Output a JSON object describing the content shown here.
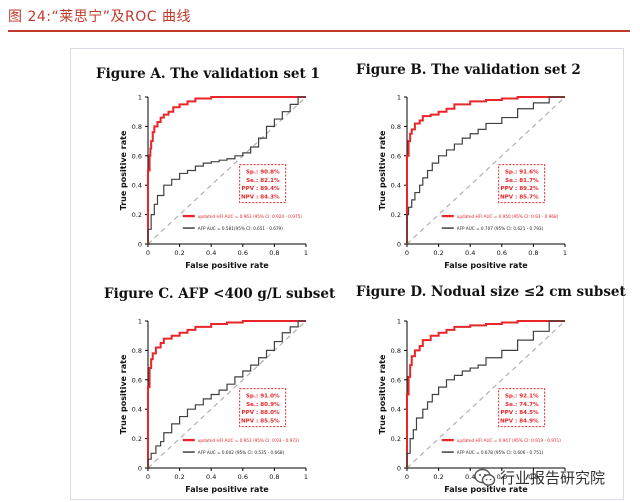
{
  "header": {
    "title": "图 24:“莱思宁”及ROC 曲线"
  },
  "colors": {
    "accent": "#c0392b",
    "updated": "#e8262a",
    "afp": "#404040",
    "diagonal": "#b0b0b0"
  },
  "watermark": {
    "text": "行业报告研究院",
    "icon": "wechat-icon"
  },
  "chart_data": [
    {
      "type": "line",
      "title": "Figure A.  The validation set 1",
      "xlabel": "False positive rate",
      "ylabel": "True positive rate",
      "xlim": [
        0,
        1
      ],
      "ylim": [
        0,
        1
      ],
      "xticks": [
        "0",
        "0.2",
        "0.4",
        "0.6",
        "0.8",
        "1"
      ],
      "yticks": [
        "0",
        "0.2",
        "0.4",
        "0.6",
        "0.8",
        "1"
      ],
      "stats": [
        "Sp.: 90.8%",
        "Se.: 82.1%",
        "PPV : 89.4%",
        "NPV : 84.3%"
      ],
      "series": [
        {
          "name": "updated HFI AUC = 0.961 (95% CI: 0.924 - 0.975)",
          "x": [
            0,
            0.01,
            0.015,
            0.02,
            0.03,
            0.04,
            0.06,
            0.08,
            0.1,
            0.13,
            0.16,
            0.2,
            0.25,
            0.3,
            0.4,
            0.6,
            0.8,
            1.0
          ],
          "y": [
            0,
            0.5,
            0.6,
            0.65,
            0.7,
            0.76,
            0.8,
            0.83,
            0.86,
            0.88,
            0.9,
            0.93,
            0.95,
            0.97,
            0.99,
            1.0,
            1.0,
            1.0
          ]
        },
        {
          "name": "AFP AUC = 0.581(95% CI: 0.651 - 0.679)",
          "x": [
            0,
            0.02,
            0.04,
            0.06,
            0.1,
            0.15,
            0.2,
            0.25,
            0.3,
            0.35,
            0.4,
            0.45,
            0.5,
            0.55,
            0.6,
            0.65,
            0.7,
            0.75,
            0.8,
            0.85,
            0.9,
            0.95,
            1.0
          ],
          "y": [
            0,
            0.1,
            0.2,
            0.27,
            0.33,
            0.4,
            0.44,
            0.48,
            0.5,
            0.53,
            0.55,
            0.56,
            0.57,
            0.58,
            0.6,
            0.62,
            0.66,
            0.72,
            0.8,
            0.85,
            0.9,
            0.95,
            1.0
          ]
        }
      ]
    },
    {
      "type": "line",
      "title": "Figure B. The validation set 2",
      "xlabel": "False positive rate",
      "ylabel": "True positive rate",
      "xlim": [
        0,
        1
      ],
      "ylim": [
        0,
        1
      ],
      "xticks": [
        "0",
        "0.2",
        "0.4",
        "0.6",
        "0.8",
        "1"
      ],
      "yticks": [
        "0",
        "0.2",
        "0.4",
        "0.6",
        "0.8",
        "1"
      ],
      "stats": [
        "Sp.: 91.6%",
        "Se.: 81.7%",
        "PPV : 89.2%",
        "NPV : 85.7%"
      ],
      "series": [
        {
          "name": "updated HFI AUC = 0.950 (95% CI: 0.93 - 0.968)",
          "x": [
            0,
            0.01,
            0.02,
            0.03,
            0.05,
            0.08,
            0.1,
            0.15,
            0.2,
            0.25,
            0.3,
            0.4,
            0.5,
            0.6,
            0.7,
            0.8,
            1.0
          ],
          "y": [
            0,
            0.6,
            0.7,
            0.75,
            0.78,
            0.82,
            0.84,
            0.87,
            0.88,
            0.9,
            0.92,
            0.95,
            0.97,
            0.98,
            0.99,
            1.0,
            1.0
          ]
        },
        {
          "name": "AFP AUC = 0.707 (95% CI: 0.621 - 0.793)",
          "x": [
            0,
            0.01,
            0.03,
            0.05,
            0.08,
            0.1,
            0.13,
            0.16,
            0.2,
            0.25,
            0.3,
            0.35,
            0.4,
            0.45,
            0.5,
            0.6,
            0.7,
            0.8,
            0.9,
            1.0
          ],
          "y": [
            0,
            0.2,
            0.25,
            0.3,
            0.35,
            0.4,
            0.45,
            0.5,
            0.55,
            0.6,
            0.64,
            0.68,
            0.72,
            0.75,
            0.78,
            0.82,
            0.86,
            0.92,
            0.96,
            1.0
          ]
        }
      ]
    },
    {
      "type": "line",
      "title": "Figure C. AFP <400 g/L subset",
      "xlabel": "False positive rate",
      "ylabel": "True positive rate",
      "xlim": [
        0,
        1
      ],
      "ylim": [
        0,
        1
      ],
      "xticks": [
        "0",
        "0.2",
        "0.4",
        "0.6",
        "0.8",
        "1"
      ],
      "yticks": [
        "0",
        "0.2",
        "0.4",
        "0.6",
        "0.8",
        "1"
      ],
      "stats": [
        "Sp.: 91.0%",
        "Se.: 80.9%",
        "PPV : 88.0%",
        "NPV : 85.5%"
      ],
      "series": [
        {
          "name": "updated HFI AUC = 0.951 (95% CI: 0.93 - 0.972)",
          "x": [
            0,
            0.01,
            0.02,
            0.03,
            0.05,
            0.08,
            0.1,
            0.15,
            0.2,
            0.25,
            0.3,
            0.4,
            0.5,
            0.6,
            0.7,
            0.8,
            1.0
          ],
          "y": [
            0,
            0.55,
            0.68,
            0.74,
            0.78,
            0.82,
            0.85,
            0.88,
            0.9,
            0.92,
            0.94,
            0.96,
            0.98,
            0.99,
            1.0,
            1.0,
            1.0
          ]
        },
        {
          "name": "AFP AUC = 0.602 (95% CI: 0.535 - 0.668)",
          "x": [
            0,
            0.02,
            0.05,
            0.08,
            0.1,
            0.15,
            0.2,
            0.25,
            0.3,
            0.35,
            0.4,
            0.45,
            0.5,
            0.55,
            0.6,
            0.65,
            0.7,
            0.75,
            0.8,
            0.85,
            0.9,
            0.95,
            1.0
          ],
          "y": [
            0,
            0.06,
            0.1,
            0.15,
            0.18,
            0.24,
            0.3,
            0.35,
            0.4,
            0.43,
            0.47,
            0.5,
            0.53,
            0.57,
            0.62,
            0.66,
            0.7,
            0.75,
            0.8,
            0.86,
            0.92,
            0.96,
            1.0
          ]
        }
      ]
    },
    {
      "type": "line",
      "title": "Figure D. Nodual size ≤2 cm subset",
      "xlabel": "False positive rate",
      "ylabel": "True positive rate",
      "xlim": [
        0,
        1
      ],
      "ylim": [
        0,
        1
      ],
      "xticks": [
        "0",
        "0.2",
        "0.4",
        "0.6",
        "0.8",
        "1"
      ],
      "yticks": [
        "0",
        "0.2",
        "0.4",
        "0.6",
        "0.8",
        "1"
      ],
      "stats": [
        "Sp.: 92.1%",
        "Se.: 74.7%",
        "PPV : 84.5%",
        "NPV : 84.9%"
      ],
      "series": [
        {
          "name": "updated HFI AUC = 0.947 (95% CI: 0.919 - 0.971)",
          "x": [
            0,
            0.01,
            0.02,
            0.03,
            0.05,
            0.08,
            0.1,
            0.15,
            0.2,
            0.25,
            0.3,
            0.4,
            0.5,
            0.6,
            0.7,
            0.8,
            1.0
          ],
          "y": [
            0,
            0.5,
            0.62,
            0.7,
            0.76,
            0.8,
            0.83,
            0.87,
            0.9,
            0.92,
            0.94,
            0.96,
            0.97,
            0.98,
            0.99,
            1.0,
            1.0
          ]
        },
        {
          "name": "AFP AUC = 0.678 (95% CI: 0.606 - 0.751)",
          "x": [
            0,
            0.02,
            0.04,
            0.06,
            0.1,
            0.13,
            0.16,
            0.2,
            0.25,
            0.3,
            0.35,
            0.4,
            0.45,
            0.5,
            0.6,
            0.7,
            0.8,
            0.9,
            1.0
          ],
          "y": [
            0,
            0.1,
            0.2,
            0.26,
            0.34,
            0.4,
            0.45,
            0.5,
            0.55,
            0.6,
            0.63,
            0.66,
            0.68,
            0.7,
            0.75,
            0.8,
            0.87,
            0.93,
            1.0
          ]
        }
      ]
    }
  ]
}
